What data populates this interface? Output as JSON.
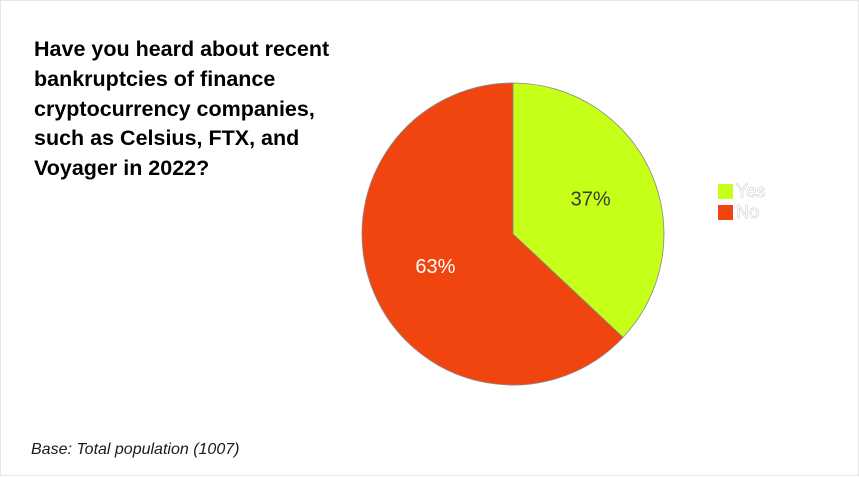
{
  "question": "Have you heard about recent bankruptcies of finance cryptocurrency companies, such as Celsius, FTX, and Voyager in 2022?",
  "base_note": "Base: Total population (1007)",
  "chart_data": {
    "type": "pie",
    "title": "Have you heard about recent bankruptcies of finance cryptocurrency companies, such as Celsius, FTX, and Voyager in 2022?",
    "categories": [
      "Yes",
      "No"
    ],
    "values": [
      37,
      63
    ],
    "labels": [
      "37%",
      "63%"
    ],
    "colors": [
      "#c6ff17",
      "#f0450e"
    ],
    "label_colors": [
      "#3a3a3a",
      "#ffffff"
    ],
    "legend_placement": "right",
    "unit": "%"
  }
}
